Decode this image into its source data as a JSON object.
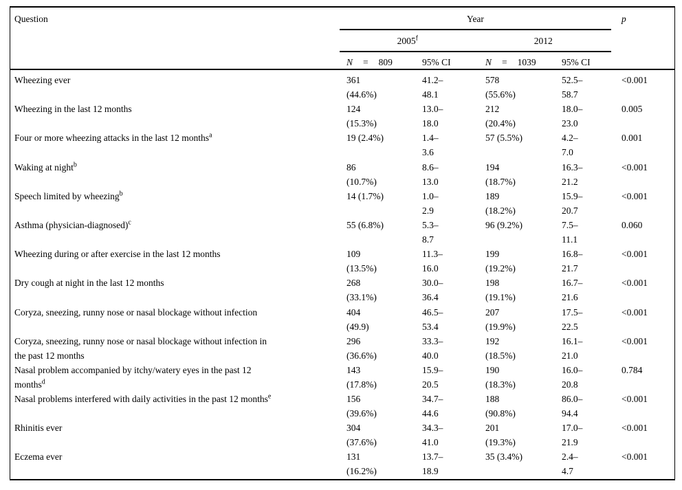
{
  "table": {
    "header": {
      "question_label": "Question",
      "year_label": "Year",
      "p_label": "p",
      "groups": [
        {
          "year": "2005",
          "sup": "f",
          "n_label": "N",
          "eq": "=",
          "n_value": "809",
          "ci_label": "95% CI"
        },
        {
          "year": "2012",
          "sup": "",
          "n_label": "N",
          "eq": "=",
          "n_value": "1039",
          "ci_label": "95% CI"
        }
      ]
    },
    "rows": [
      {
        "question": "Wheezing ever",
        "sup": "",
        "n_2005": "361\n(44.6%)",
        "ci_2005": "41.2–\n48.1",
        "n_2012": "578\n(55.6%)",
        "ci_2012": "52.5–\n58.7",
        "p": "<0.001"
      },
      {
        "question": "Wheezing in the last 12 months",
        "sup": "",
        "n_2005": "124\n(15.3%)",
        "ci_2005": "13.0–\n18.0",
        "n_2012": "212\n(20.4%)",
        "ci_2012": "18.0–\n23.0",
        "p": "0.005"
      },
      {
        "question": "Four or more wheezing attacks in the last 12 months",
        "sup": "a",
        "n_2005": "19 (2.4%)",
        "ci_2005": "1.4–\n3.6",
        "n_2012": "57 (5.5%)",
        "ci_2012": "4.2–\n7.0",
        "p": "0.001"
      },
      {
        "question": "Waking at night",
        "sup": "b",
        "n_2005": "86\n(10.7%)",
        "ci_2005": "8.6–\n13.0",
        "n_2012": "194\n(18.7%)",
        "ci_2012": "16.3–\n21.2",
        "p": "<0.001"
      },
      {
        "question": "Speech limited by wheezing",
        "sup": "b",
        "n_2005": "14 (1.7%)",
        "ci_2005": "1.0–\n2.9",
        "n_2012": "189\n(18.2%)",
        "ci_2012": "15.9–\n20.7",
        "p": "<0.001"
      },
      {
        "question": "Asthma (physician-diagnosed)",
        "sup": "c",
        "n_2005": "55 (6.8%)",
        "ci_2005": "5.3–\n8.7",
        "n_2012": "96 (9.2%)",
        "ci_2012": "7.5–\n11.1",
        "p": "0.060"
      },
      {
        "question": "Wheezing during or after exercise in the last 12 months",
        "sup": "",
        "n_2005": "109\n(13.5%)",
        "ci_2005": "11.3–\n16.0",
        "n_2012": "199\n(19.2%)",
        "ci_2012": "16.8–\n21.7",
        "p": "<0.001"
      },
      {
        "question": "Dry cough at night in the last 12 months",
        "sup": "",
        "n_2005": "268\n(33.1%)",
        "ci_2005": "30.0–\n36.4",
        "n_2012": "198\n(19.1%)",
        "ci_2012": "16.7–\n21.6",
        "p": "<0.001"
      },
      {
        "question": "Coryza, sneezing, runny nose or nasal blockage without infection",
        "sup": "",
        "n_2005": "404\n(49.9)",
        "ci_2005": "46.5–\n53.4",
        "n_2012": "207\n(19.9%)",
        "ci_2012": "17.5–\n22.5",
        "p": "<0.001"
      },
      {
        "question": "Coryza, sneezing, runny nose or nasal blockage without infection in\nthe past 12 months",
        "sup": "",
        "n_2005": "296\n(36.6%)",
        "ci_2005": "33.3–\n40.0",
        "n_2012": "192\n(18.5%)",
        "ci_2012": "16.1–\n21.0",
        "p": "<0.001"
      },
      {
        "question": "Nasal problem accompanied by itchy/watery eyes in the past 12\nmonths",
        "sup": "d",
        "n_2005": "143\n(17.8%)",
        "ci_2005": "15.9–\n20.5",
        "n_2012": "190\n(18.3%)",
        "ci_2012": "16.0–\n20.8",
        "p": "0.784"
      },
      {
        "question": "Nasal problems interfered with daily activities in the past 12 months",
        "sup": "e",
        "n_2005": "156\n(39.6%)",
        "ci_2005": "34.7–\n44.6",
        "n_2012": "188\n(90.8%)",
        "ci_2012": "86.0–\n94.4",
        "p": "<0.001"
      },
      {
        "question": "Rhinitis ever",
        "sup": "",
        "n_2005": "304\n(37.6%)",
        "ci_2005": "34.3–\n41.0",
        "n_2012": "201\n(19.3%)",
        "ci_2012": "17.0–\n21.9",
        "p": "<0.001"
      },
      {
        "question": "Eczema ever",
        "sup": "",
        "n_2005": "131\n(16.2%)",
        "ci_2005": "13.7–\n18.9",
        "n_2012": "35 (3.4%)",
        "ci_2012": "2.4–\n4.7",
        "p": "<0.001"
      }
    ]
  }
}
